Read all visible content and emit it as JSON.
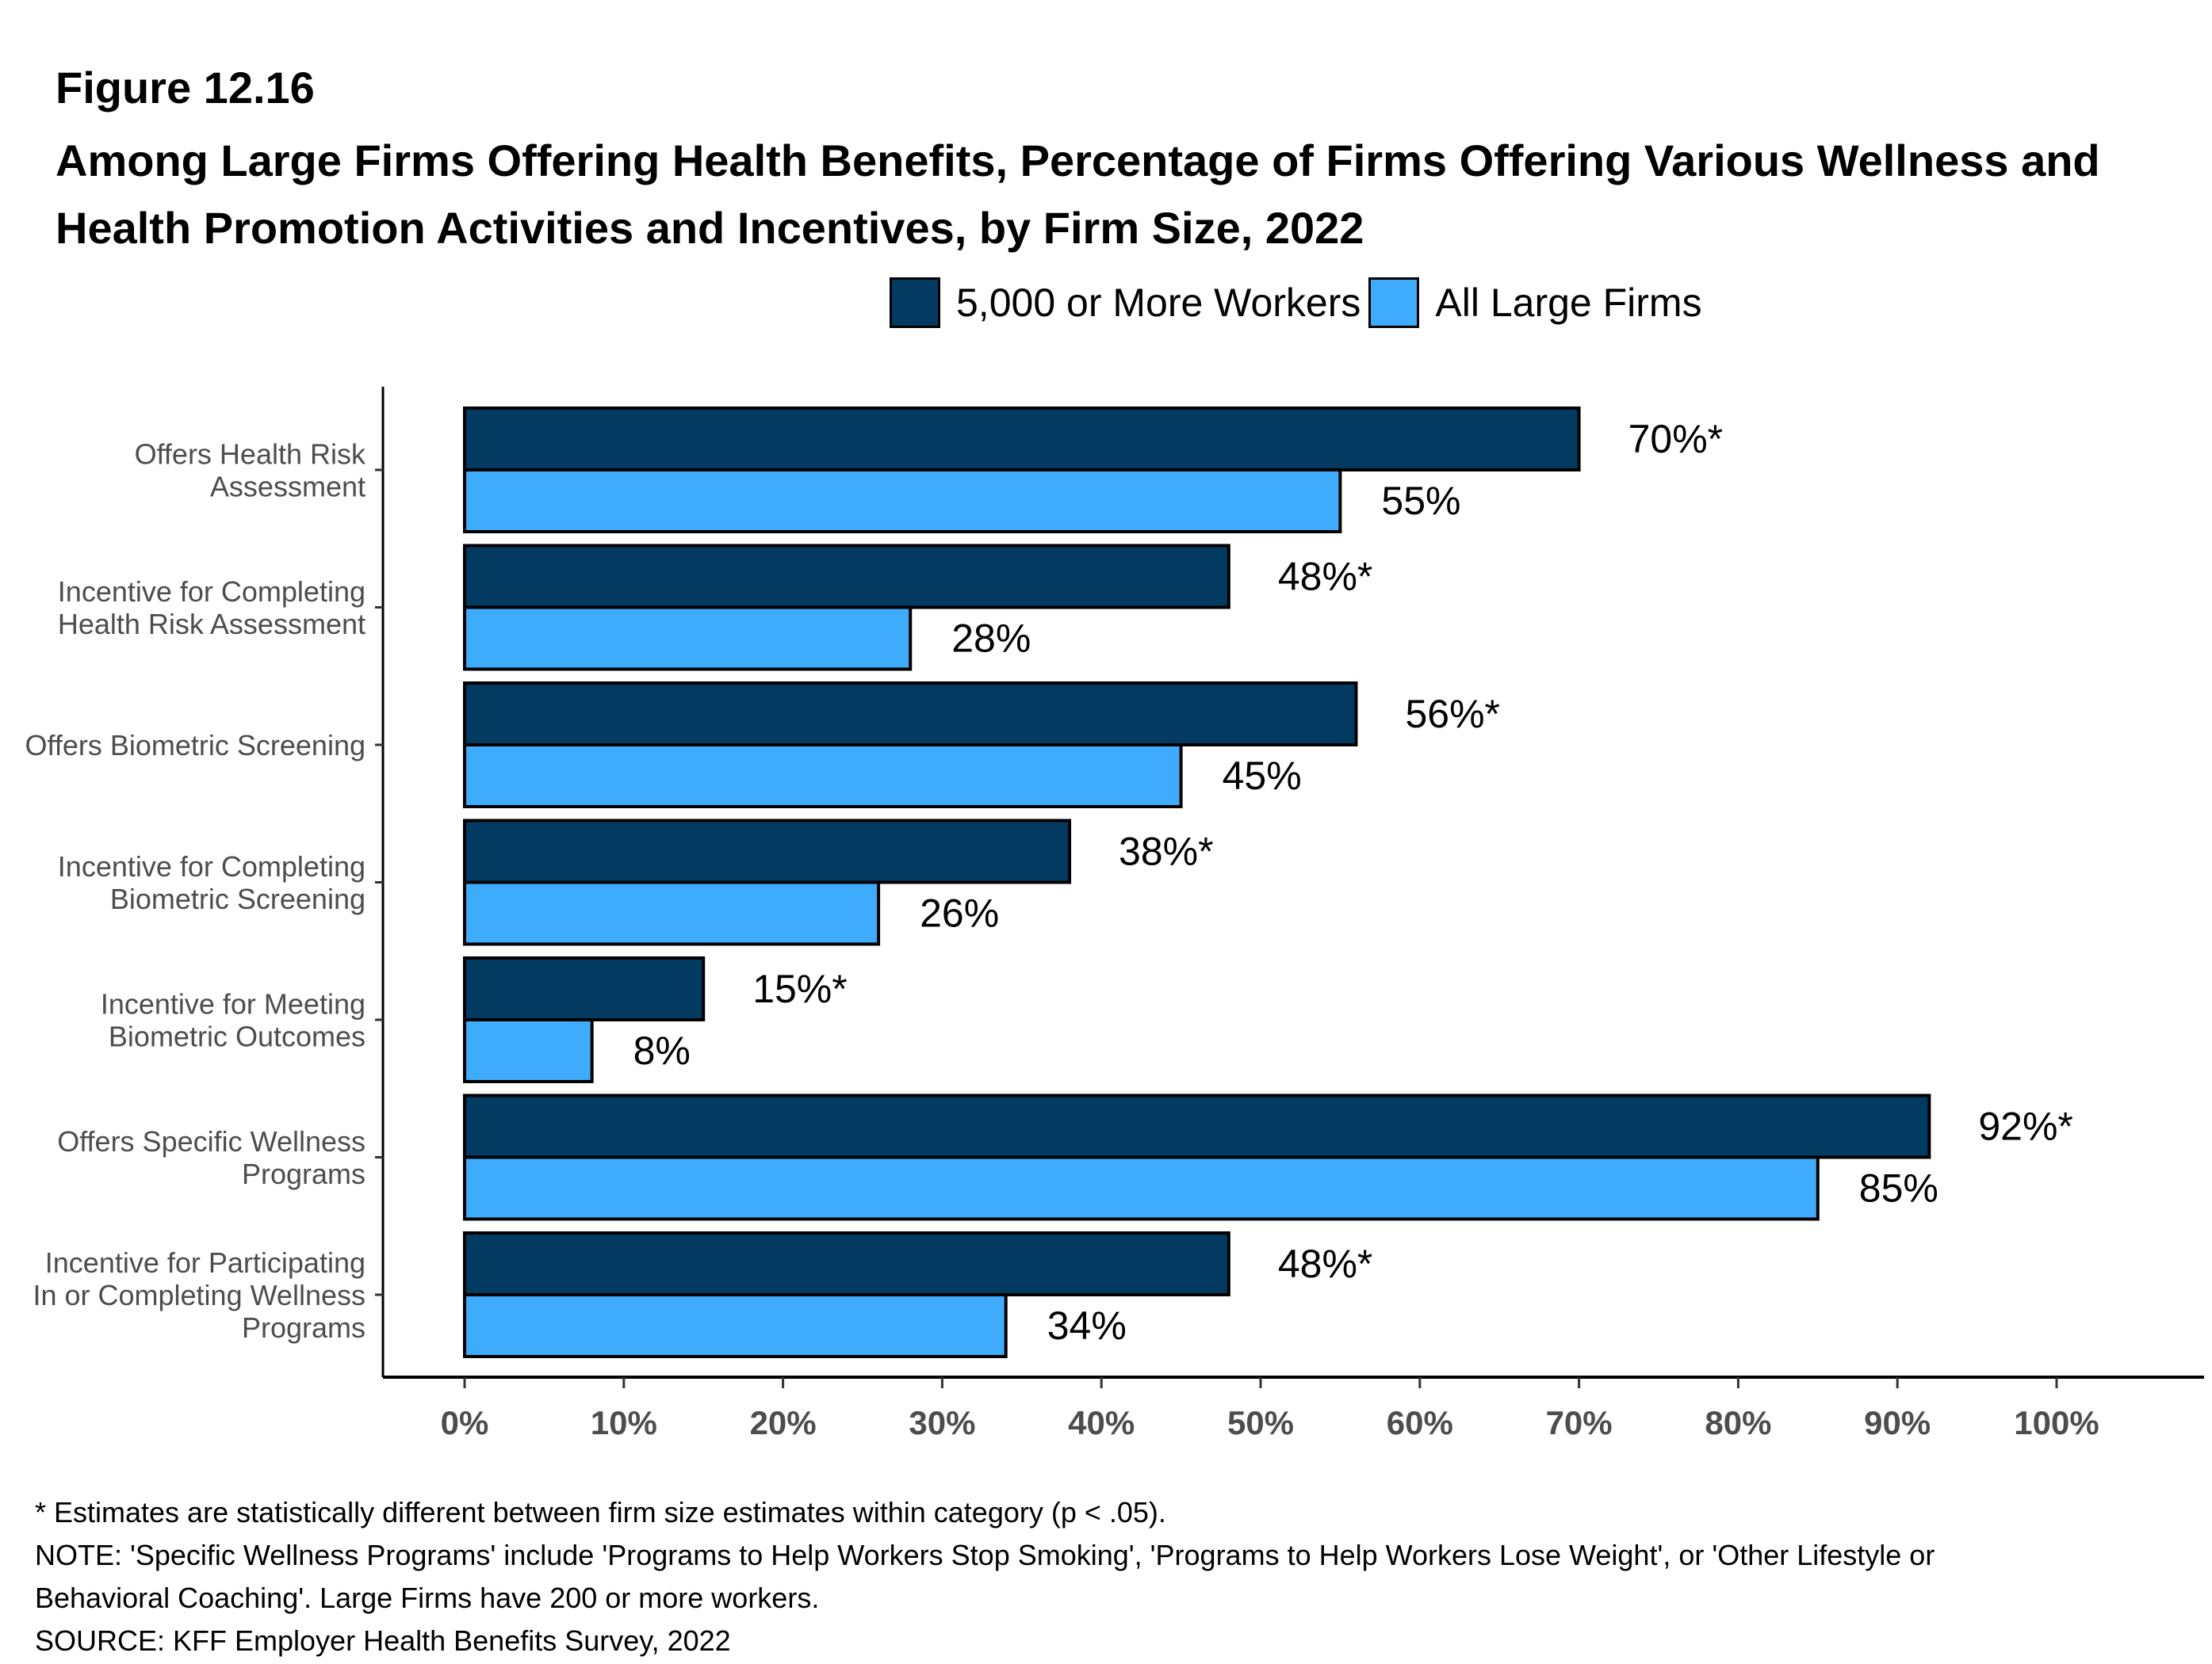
{
  "figure_label": "Figure 12.16",
  "chart_data": {
    "type": "bar",
    "orientation": "horizontal",
    "title": "Among Large Firms Offering Health Benefits, Percentage of Firms Offering Various Wellness and Health Promotion Activities and Incentives, by Firm Size, 2022",
    "categories": [
      [
        "Offers Health Risk",
        "Assessment"
      ],
      [
        "Incentive for Completing",
        "Health Risk Assessment"
      ],
      [
        "Offers Biometric Screening"
      ],
      [
        "Incentive for Completing",
        "Biometric Screening"
      ],
      [
        "Incentive for Meeting",
        "Biometric Outcomes"
      ],
      [
        "Offers Specific Wellness",
        "Programs"
      ],
      [
        "Incentive for Participating",
        "In or Completing Wellness",
        "Programs"
      ]
    ],
    "series": [
      {
        "name": "5,000 or More Workers",
        "color": "#023a62",
        "values": [
          70,
          48,
          56,
          38,
          15,
          92,
          48
        ],
        "labels": [
          "70%*",
          "48%*",
          "56%*",
          "38%*",
          "15%*",
          "92%*",
          "48%*"
        ]
      },
      {
        "name": "All Large Firms",
        "color": "#3eabfc",
        "values": [
          55,
          28,
          45,
          26,
          8,
          85,
          34
        ],
        "labels": [
          "55%",
          "28%",
          "45%",
          "26%",
          "8%",
          "85%",
          "34%"
        ]
      }
    ],
    "xlim": [
      0,
      100
    ],
    "xticks": [
      "0%",
      "10%",
      "20%",
      "30%",
      "40%",
      "50%",
      "60%",
      "70%",
      "80%",
      "90%",
      "100%"
    ],
    "xlabel": "",
    "ylabel": "",
    "grid": false,
    "legend": "top"
  },
  "notes": [
    "* Estimates are statistically different between firm size estimates within category (p < .05).",
    "NOTE: 'Specific Wellness Programs' include 'Programs to Help Workers Stop Smoking', 'Programs to Help Workers Lose Weight', or 'Other Lifestyle or",
    "Behavioral Coaching'. Large Firms have 200 or more workers.",
    "SOURCE: KFF Employer Health Benefits Survey, 2022"
  ]
}
